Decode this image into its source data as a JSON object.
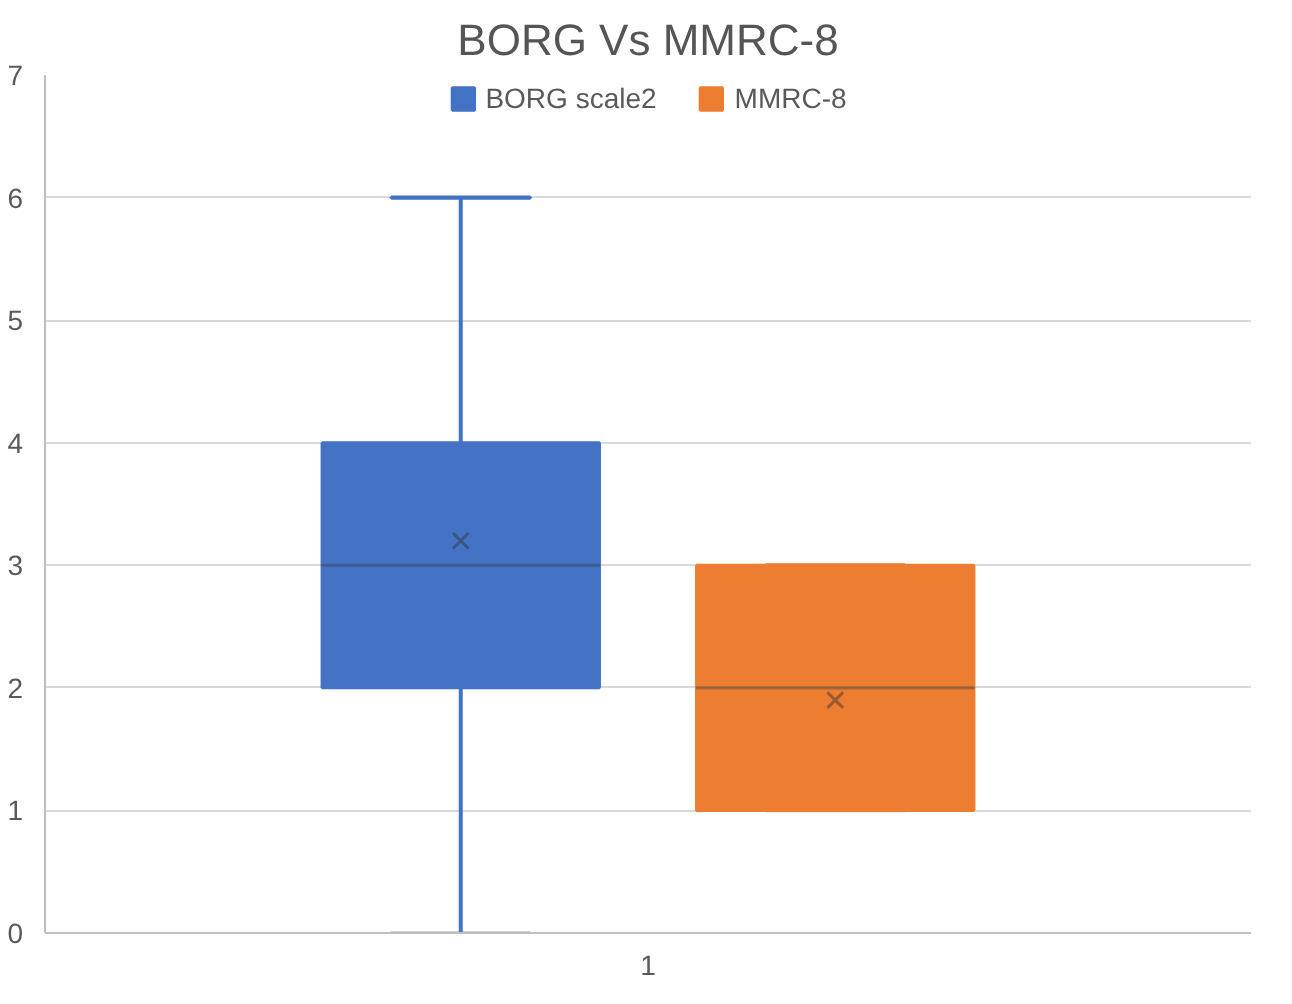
{
  "chart_data": {
    "type": "box",
    "title": "BORG Vs MMRC-8",
    "categories": [
      "1"
    ],
    "series": [
      {
        "name": "BORG scale2",
        "color": "#4472c4",
        "boxes": [
          {
            "low": 0,
            "q1": 2,
            "median": 3,
            "q3": 4,
            "high": 6,
            "mean": 3.2
          }
        ]
      },
      {
        "name": "MMRC-8",
        "color": "#ed7d31",
        "boxes": [
          {
            "low": 1,
            "q1": 1,
            "median": 2,
            "q3": 3,
            "high": 3,
            "mean": 1.9
          }
        ]
      }
    ],
    "ylim": [
      0,
      7
    ],
    "yticks": [
      0,
      1,
      2,
      3,
      4,
      5,
      6,
      7
    ],
    "grid": "y",
    "legend": "top"
  }
}
